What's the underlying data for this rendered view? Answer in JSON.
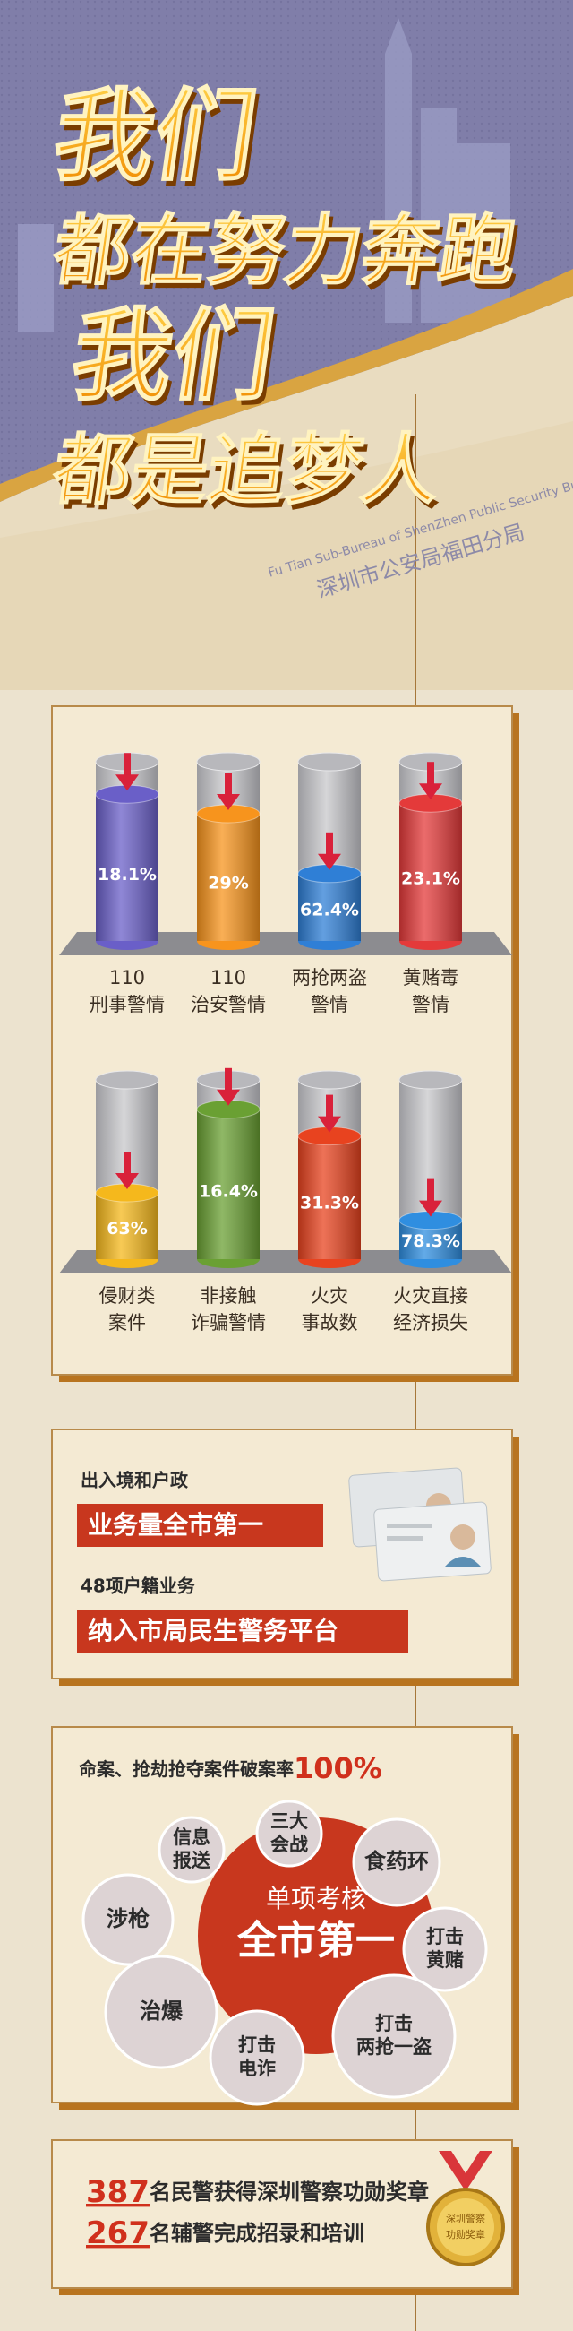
{
  "header": {
    "title_lines": [
      "我们",
      "都在努力奔跑",
      "我们",
      "都是追梦人"
    ],
    "subtitle_en": "Fu Tian Sub-Bureau of ShenZhen Public Security Bureau",
    "subtitle_cn": "深圳市公安局福田分局"
  },
  "decline_stats": {
    "items": [
      {
        "label": [
          "110",
          "刑事警情"
        ],
        "value": 18.1,
        "value_label": "18.1%",
        "color": "#6a5fc8"
      },
      {
        "label": [
          "110",
          "治安警情"
        ],
        "value": 29,
        "value_label": "29%",
        "color": "#f7941d"
      },
      {
        "label": [
          "两抢两盗",
          "警情"
        ],
        "value": 62.4,
        "value_label": "62.4%",
        "color": "#2f7fd6"
      },
      {
        "label": [
          "黄赌毒",
          "警情"
        ],
        "value": 23.1,
        "value_label": "23.1%",
        "color": "#e43a3a"
      },
      {
        "label": [
          "侵财类",
          "案件"
        ],
        "value": 63,
        "value_label": "63%",
        "color": "#f5b81c"
      },
      {
        "label": [
          "非接触",
          "诈骗警情"
        ],
        "value": 16.4,
        "value_label": "16.4%",
        "color": "#6aa033"
      },
      {
        "label": [
          "火灾",
          "事故数"
        ],
        "value": 31.3,
        "value_label": "31.3%",
        "color": "#e8431f"
      },
      {
        "label": [
          "火灾直接",
          "经济损失"
        ],
        "value": 78.3,
        "value_label": "78.3%",
        "color": "#2f8ee0"
      }
    ]
  },
  "services": {
    "items": [
      {
        "caption": "出入境和户政",
        "banner": "业务量全市第一"
      },
      {
        "caption": "48项户籍业务",
        "banner": "纳入市局民生警务平台"
      }
    ]
  },
  "rankings": {
    "headline": "命案、抢劫抢夺案件破案率",
    "headline_highlight": "100%",
    "center": [
      "单项考核",
      "全市第一"
    ],
    "bubbles": [
      {
        "label": [
          "三大",
          "会战"
        ]
      },
      {
        "label": [
          "信息",
          "报送"
        ]
      },
      {
        "label": [
          "食药环"
        ]
      },
      {
        "label": [
          "涉枪"
        ]
      },
      {
        "label": [
          "打击",
          "黄赌"
        ]
      },
      {
        "label": [
          "治爆"
        ]
      },
      {
        "label": [
          "打击",
          "电诈"
        ]
      },
      {
        "label": [
          "打击",
          "两抢一盗"
        ]
      }
    ]
  },
  "awards": {
    "lines": [
      {
        "number": 387,
        "text": "名民警获得深圳警察功勋奖章"
      },
      {
        "number": 267,
        "text": "名辅警完成招录和培训"
      }
    ],
    "medal_text": [
      "深圳警察",
      "功勋奖章"
    ]
  }
}
